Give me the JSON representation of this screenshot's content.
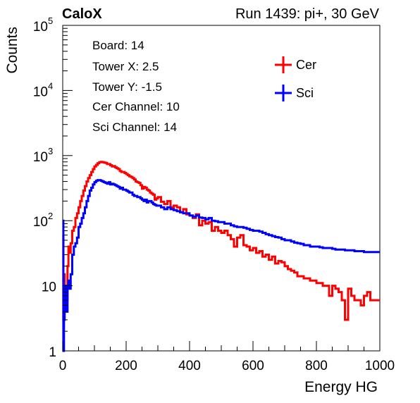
{
  "header": {
    "left_title": "CaloX",
    "right_title": "Run 1439: pi+, 30 GeV"
  },
  "info_box": {
    "lines": [
      "Board: 14",
      "Tower X: 2.5",
      "Tower Y: -1.5",
      "Cer Channel: 10",
      "Sci Channel: 14"
    ]
  },
  "chart_data": {
    "type": "line",
    "xlabel": "Energy HG",
    "ylabel": "Counts",
    "xlim": [
      0,
      1000
    ],
    "ylim": [
      1,
      100000
    ],
    "yscale": "log",
    "x_ticks": [
      0,
      200,
      400,
      600,
      800,
      1000
    ],
    "y_ticks": [
      {
        "value": 1,
        "label": "1",
        "sup": ""
      },
      {
        "value": 10,
        "label": "10",
        "sup": ""
      },
      {
        "value": 100,
        "label": "10",
        "sup": "2"
      },
      {
        "value": 1000,
        "label": "10",
        "sup": "3"
      },
      {
        "value": 10000,
        "label": "10",
        "sup": "4"
      },
      {
        "value": 100000,
        "label": "10",
        "sup": "5"
      }
    ],
    "legend_position": "top-right",
    "series": [
      {
        "name": "Cer",
        "color": "#ff0000",
        "x": [
          0,
          2,
          4,
          6,
          8,
          10,
          12,
          15,
          18,
          20,
          25,
          30,
          35,
          40,
          45,
          50,
          55,
          60,
          65,
          70,
          75,
          80,
          85,
          90,
          95,
          100,
          105,
          110,
          115,
          120,
          125,
          130,
          135,
          140,
          145,
          150,
          155,
          160,
          165,
          170,
          175,
          180,
          185,
          190,
          195,
          200,
          205,
          210,
          215,
          220,
          225,
          230,
          235,
          240,
          245,
          250,
          255,
          260,
          265,
          270,
          275,
          280,
          285,
          290,
          295,
          300,
          310,
          320,
          330,
          340,
          350,
          360,
          370,
          380,
          390,
          400,
          410,
          420,
          430,
          440,
          450,
          460,
          470,
          480,
          490,
          500,
          510,
          520,
          530,
          540,
          550,
          560,
          570,
          580,
          590,
          600,
          610,
          620,
          630,
          640,
          650,
          660,
          670,
          680,
          690,
          700,
          710,
          720,
          730,
          740,
          750,
          760,
          770,
          780,
          790,
          800,
          810,
          820,
          830,
          840,
          850,
          860,
          870,
          880,
          890,
          900,
          910,
          920,
          930,
          940,
          950,
          960,
          970,
          980,
          990,
          1000
        ],
        "y": [
          60,
          3,
          15,
          8,
          5,
          10,
          6,
          20,
          40,
          32,
          45,
          70,
          80,
          110,
          130,
          160,
          200,
          240,
          290,
          340,
          400,
          450,
          500,
          560,
          620,
          680,
          720,
          760,
          790,
          800,
          790,
          780,
          770,
          740,
          740,
          710,
          680,
          690,
          660,
          640,
          620,
          580,
          560,
          560,
          540,
          520,
          500,
          480,
          470,
          450,
          430,
          400,
          390,
          380,
          350,
          310,
          330,
          320,
          300,
          290,
          270,
          260,
          250,
          210,
          220,
          230,
          195,
          180,
          200,
          160,
          170,
          160,
          135,
          150,
          125,
          120,
          110,
          125,
          85,
          100,
          90,
          95,
          70,
          80,
          70,
          65,
          70,
          60,
          52,
          40,
          55,
          60,
          42,
          40,
          35,
          38,
          32,
          34,
          28,
          30,
          25,
          28,
          22,
          24,
          23,
          20,
          18,
          17,
          16,
          14,
          14,
          13,
          13,
          12,
          12,
          11,
          11,
          10,
          10,
          7,
          10,
          9,
          8,
          6,
          3,
          9,
          7,
          6,
          6,
          5,
          7,
          8,
          6,
          6,
          6,
          6
        ]
      },
      {
        "name": "Sci",
        "color": "#0000ff",
        "x": [
          0,
          2,
          4,
          6,
          8,
          10,
          12,
          15,
          18,
          20,
          25,
          30,
          35,
          40,
          45,
          50,
          55,
          60,
          65,
          70,
          75,
          80,
          85,
          90,
          95,
          100,
          105,
          110,
          115,
          120,
          125,
          130,
          135,
          140,
          145,
          150,
          155,
          160,
          165,
          170,
          175,
          180,
          185,
          190,
          195,
          200,
          205,
          210,
          215,
          220,
          225,
          230,
          235,
          240,
          245,
          250,
          255,
          260,
          265,
          270,
          275,
          280,
          285,
          290,
          295,
          300,
          310,
          320,
          330,
          340,
          350,
          360,
          370,
          380,
          390,
          400,
          410,
          420,
          430,
          440,
          450,
          460,
          470,
          480,
          490,
          500,
          510,
          520,
          530,
          540,
          550,
          560,
          570,
          580,
          590,
          600,
          610,
          620,
          630,
          640,
          650,
          660,
          670,
          680,
          690,
          700,
          710,
          720,
          730,
          740,
          750,
          760,
          770,
          780,
          790,
          800,
          810,
          820,
          830,
          840,
          850,
          860,
          870,
          880,
          890,
          900,
          910,
          920,
          930,
          940,
          950,
          960,
          970,
          980,
          990,
          1000
        ],
        "y": [
          100,
          1,
          3,
          5,
          10,
          7,
          4,
          10,
          12,
          9,
          15,
          30,
          40,
          45,
          55,
          80,
          90,
          110,
          130,
          160,
          200,
          240,
          290,
          320,
          360,
          390,
          410,
          420,
          420,
          410,
          400,
          390,
          380,
          370,
          390,
          360,
          370,
          360,
          350,
          340,
          330,
          310,
          320,
          300,
          300,
          290,
          280,
          270,
          270,
          250,
          240,
          240,
          230,
          230,
          220,
          210,
          200,
          210,
          190,
          200,
          200,
          190,
          180,
          175,
          170,
          170,
          160,
          150,
          160,
          150,
          145,
          140,
          135,
          130,
          130,
          120,
          115,
          120,
          112,
          110,
          105,
          110,
          100,
          98,
          95,
          95,
          90,
          90,
          85,
          82,
          80,
          80,
          78,
          75,
          72,
          70,
          70,
          68,
          65,
          62,
          60,
          58,
          56,
          55,
          52,
          50,
          50,
          48,
          46,
          45,
          44,
          42,
          42,
          40,
          40,
          40,
          39,
          38,
          38,
          38,
          37,
          36,
          36,
          36,
          35,
          35,
          35,
          34,
          34,
          34,
          33,
          33,
          33,
          33,
          33,
          33
        ]
      }
    ]
  }
}
